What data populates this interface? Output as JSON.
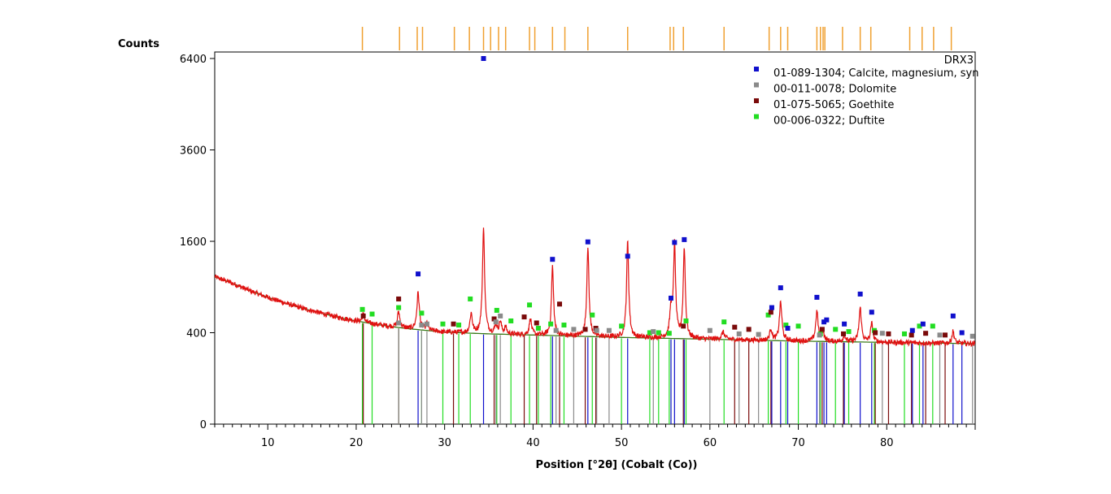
{
  "chart_data": {
    "type": "line",
    "sample_name": "DRX3",
    "xlabel": "Position [°2θ] (Cobalt (Co))",
    "ylabel": "Counts",
    "xlim": [
      4,
      90
    ],
    "x_ticks": [
      10,
      20,
      30,
      40,
      50,
      60,
      70,
      80
    ],
    "y_scale": "sqrt",
    "y_ticks": [
      0,
      400,
      1600,
      3600,
      6400
    ],
    "ylim": [
      0,
      6600
    ],
    "colors": {
      "pattern": "#e01010",
      "background": "#3a7a1a",
      "calcite": "#1010cc",
      "dolomite": "#8a8a8a",
      "goethite": "#7a0a0a",
      "duftite": "#22dd22",
      "peak_list": "#f0a030"
    },
    "legend": [
      {
        "key": "calcite",
        "label": "01-089-1304; Calcite, magnesium, syn",
        "marker": "square"
      },
      {
        "key": "dolomite",
        "label": "00-011-0078; Dolomite",
        "marker": "square"
      },
      {
        "key": "goethite",
        "label": "01-075-5065; Goethite",
        "marker": "square"
      },
      {
        "key": "duftite",
        "label": "00-006-0322; Duftite",
        "marker": "square"
      }
    ],
    "background_curve": [
      [
        4,
        1040
      ],
      [
        6,
        950
      ],
      [
        8,
        850
      ],
      [
        10,
        770
      ],
      [
        12,
        700
      ],
      [
        14,
        640
      ],
      [
        16,
        590
      ],
      [
        18,
        545
      ],
      [
        20,
        510
      ],
      [
        22,
        480
      ],
      [
        24,
        455
      ],
      [
        26,
        435
      ],
      [
        28,
        420
      ],
      [
        30,
        405
      ],
      [
        35,
        390
      ],
      [
        40,
        380
      ],
      [
        50,
        360
      ],
      [
        60,
        345
      ],
      [
        70,
        330
      ],
      [
        80,
        320
      ],
      [
        90,
        310
      ]
    ],
    "pattern_peaks": [
      {
        "x": 20.8,
        "y": 80,
        "w": 0.15
      },
      {
        "x": 24.8,
        "y": 160,
        "w": 0.15
      },
      {
        "x": 27.0,
        "y": 400,
        "w": 0.15
      },
      {
        "x": 28.0,
        "y": 60,
        "w": 0.15
      },
      {
        "x": 33.0,
        "y": 190,
        "w": 0.15
      },
      {
        "x": 34.4,
        "y": 1450,
        "w": 0.12
      },
      {
        "x": 35.8,
        "y": 80,
        "w": 0.15
      },
      {
        "x": 36.3,
        "y": 110,
        "w": 0.15
      },
      {
        "x": 36.9,
        "y": 60,
        "w": 0.15
      },
      {
        "x": 39.7,
        "y": 150,
        "w": 0.15
      },
      {
        "x": 42.2,
        "y": 820,
        "w": 0.12
      },
      {
        "x": 46.2,
        "y": 1150,
        "w": 0.12
      },
      {
        "x": 50.7,
        "y": 1250,
        "w": 0.12
      },
      {
        "x": 55.6,
        "y": 280,
        "w": 0.15
      },
      {
        "x": 56.0,
        "y": 1200,
        "w": 0.12
      },
      {
        "x": 57.1,
        "y": 1150,
        "w": 0.12
      },
      {
        "x": 61.5,
        "y": 60,
        "w": 0.2
      },
      {
        "x": 66.9,
        "y": 100,
        "w": 0.15
      },
      {
        "x": 68.0,
        "y": 380,
        "w": 0.15
      },
      {
        "x": 72.1,
        "y": 280,
        "w": 0.15
      },
      {
        "x": 72.8,
        "y": 80,
        "w": 0.15
      },
      {
        "x": 75.2,
        "y": 60,
        "w": 0.15
      },
      {
        "x": 77.0,
        "y": 320,
        "w": 0.15
      },
      {
        "x": 78.3,
        "y": 160,
        "w": 0.15
      },
      {
        "x": 87.5,
        "y": 100,
        "w": 0.15
      }
    ],
    "reference_peaks": {
      "calcite": [
        [
          27.0,
          1080
        ],
        [
          34.4,
          6400
        ],
        [
          42.2,
          1300
        ],
        [
          46.2,
          1590
        ],
        [
          50.7,
          1350
        ],
        [
          55.6,
          760
        ],
        [
          56.0,
          1580
        ],
        [
          57.1,
          1630
        ],
        [
          67.0,
          650
        ],
        [
          68.0,
          890
        ],
        [
          68.8,
          440
        ],
        [
          72.1,
          770
        ],
        [
          72.9,
          500
        ],
        [
          73.2,
          520
        ],
        [
          75.2,
          480
        ],
        [
          77.0,
          810
        ],
        [
          78.3,
          600
        ],
        [
          82.9,
          420
        ],
        [
          84.1,
          480
        ],
        [
          87.5,
          560
        ],
        [
          88.5,
          400
        ]
      ],
      "dolomite": [
        [
          24.8,
          490
        ],
        [
          27.4,
          470
        ],
        [
          28.0,
          480
        ],
        [
          35.8,
          500
        ],
        [
          36.3,
          560
        ],
        [
          42.6,
          420
        ],
        [
          44.6,
          430
        ],
        [
          47.2,
          420
        ],
        [
          48.6,
          420
        ],
        [
          53.6,
          410
        ],
        [
          60.0,
          420
        ],
        [
          63.3,
          390
        ],
        [
          65.5,
          385
        ],
        [
          72.4,
          380
        ],
        [
          79.5,
          395
        ],
        [
          86.0,
          380
        ],
        [
          89.7,
          370
        ]
      ],
      "goethite": [
        [
          20.8,
          560
        ],
        [
          24.8,
          750
        ],
        [
          31.0,
          480
        ],
        [
          35.6,
          530
        ],
        [
          39.0,
          550
        ],
        [
          40.4,
          490
        ],
        [
          43.0,
          690
        ],
        [
          45.9,
          430
        ],
        [
          47.1,
          440
        ],
        [
          57.0,
          460
        ],
        [
          62.8,
          450
        ],
        [
          64.4,
          430
        ],
        [
          66.9,
          600
        ],
        [
          72.7,
          430
        ],
        [
          75.1,
          390
        ],
        [
          78.7,
          400
        ],
        [
          80.2,
          390
        ],
        [
          82.8,
          380
        ],
        [
          84.4,
          395
        ],
        [
          86.6,
          380
        ]
      ],
      "duftite": [
        [
          20.7,
          630
        ],
        [
          21.8,
          580
        ],
        [
          24.8,
          650
        ],
        [
          27.4,
          590
        ],
        [
          29.8,
          480
        ],
        [
          31.6,
          470
        ],
        [
          32.9,
          750
        ],
        [
          35.9,
          620
        ],
        [
          37.5,
          510
        ],
        [
          39.6,
          680
        ],
        [
          40.6,
          440
        ],
        [
          42.0,
          480
        ],
        [
          43.5,
          470
        ],
        [
          46.7,
          570
        ],
        [
          50.0,
          460
        ],
        [
          53.2,
          400
        ],
        [
          54.2,
          400
        ],
        [
          55.4,
          395
        ],
        [
          57.3,
          510
        ],
        [
          61.6,
          500
        ],
        [
          66.6,
          570
        ],
        [
          68.6,
          470
        ],
        [
          70.0,
          460
        ],
        [
          72.5,
          390
        ],
        [
          74.2,
          430
        ],
        [
          75.7,
          410
        ],
        [
          78.6,
          420
        ],
        [
          82.0,
          390
        ],
        [
          83.7,
          460
        ],
        [
          85.2,
          460
        ]
      ]
    },
    "peak_list": [
      20.7,
      24.9,
      26.9,
      27.5,
      31.1,
      32.8,
      34.4,
      35.2,
      36.1,
      36.9,
      39.6,
      40.2,
      42.2,
      43.6,
      46.2,
      50.7,
      55.5,
      55.9,
      57.0,
      61.6,
      66.7,
      68.0,
      68.8,
      72.1,
      72.5,
      72.8,
      73.0,
      75.0,
      77.0,
      78.2,
      82.6,
      84.0,
      85.3,
      87.3
    ]
  }
}
